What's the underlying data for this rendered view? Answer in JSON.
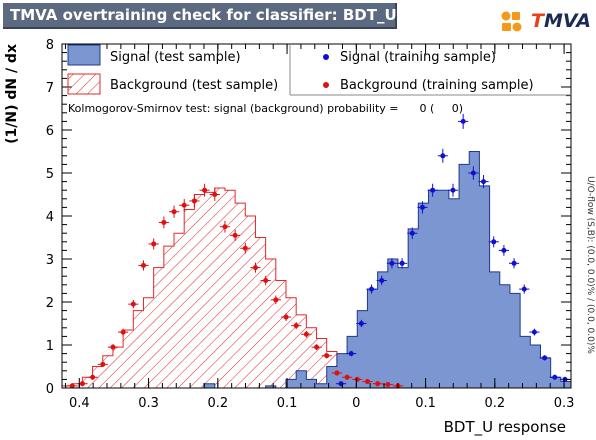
{
  "header": {
    "title": "TMVA overtraining check for classifier: BDT_U",
    "logo_text": "TMVA",
    "logo_text_plain": "MVA",
    "logo_text_accent": "T"
  },
  "legend": {
    "signal_test": "Signal (test sample)",
    "signal_train": "Signal (training sample)",
    "background_test": "Background (test sample)",
    "background_train": "Background (training sample)"
  },
  "ks_text": "Kolmogorov-Smirnov test: signal (background) probability =      0 (     0)",
  "side_text": "U/O-flow (S,B): (0.0, 0.0)% / (0.0, 0.0)%",
  "colors": {
    "signal_fill": "#7b96d0",
    "signal_line": "#1f3a8f",
    "background_line": "#e0282a",
    "signal_marker": "#1010d0",
    "background_marker": "#e01010"
  },
  "chart_data": {
    "type": "area",
    "title": "TMVA overtraining check for classifier: BDT_U",
    "xlabel": "BDT_U response",
    "ylabel": "(1/N) dN / dx",
    "xlim": [
      -0.425,
      0.31
    ],
    "ylim": [
      0,
      8
    ],
    "xticks": [
      -0.4,
      -0.3,
      -0.2,
      -0.1,
      0,
      0.1,
      0.2,
      0.3
    ],
    "xtick_labels": [
      "0.4",
      "0.3",
      "0.2",
      "0.1",
      "0",
      "0.1",
      "0.2",
      "0.3"
    ],
    "yticks": [
      0,
      1,
      2,
      3,
      4,
      5,
      6,
      7,
      8
    ],
    "ytick_labels": [
      "0",
      "1",
      "2",
      "3",
      "4",
      "5",
      "6",
      "7",
      "8"
    ],
    "bin_width": 0.0147,
    "series": [
      {
        "name": "Signal (test sample)",
        "style": "filled-histogram",
        "x": [
          -0.4176,
          -0.4029,
          -0.3882,
          -0.3735,
          -0.3588,
          -0.3441,
          -0.3294,
          -0.3147,
          -0.3,
          -0.2853,
          -0.2706,
          -0.2559,
          -0.2412,
          -0.2265,
          -0.2118,
          -0.1971,
          -0.1824,
          -0.1677,
          -0.153,
          -0.1383,
          -0.1236,
          -0.1089,
          -0.0942,
          -0.0795,
          -0.0648,
          -0.0501,
          -0.0354,
          -0.0207,
          -0.006,
          0.0087,
          0.0234,
          0.0381,
          0.0528,
          0.0675,
          0.0822,
          0.0969,
          0.1116,
          0.1263,
          0.141,
          0.1557,
          0.1704,
          0.1851,
          0.1998,
          0.2145,
          0.2292,
          0.2439,
          0.2586,
          0.2733,
          0.288,
          0.3027
        ],
        "values": [
          0,
          0,
          0,
          0,
          0,
          0,
          0,
          0,
          0,
          0,
          0,
          0,
          0,
          0,
          0.1,
          0,
          0,
          0,
          0,
          0,
          0.05,
          0,
          0.2,
          0.4,
          0.2,
          0.1,
          0.5,
          0.8,
          1.2,
          1.8,
          2.3,
          2.7,
          3.0,
          2.8,
          3.7,
          4.3,
          4.6,
          4.6,
          4.4,
          5.2,
          5.5,
          4.7,
          2.7,
          2.4,
          2.2,
          1.2,
          1.0,
          0.7,
          0.25,
          0.15
        ]
      },
      {
        "name": "Background (test sample)",
        "style": "hatched-histogram",
        "x": [
          -0.4176,
          -0.4029,
          -0.3882,
          -0.3735,
          -0.3588,
          -0.3441,
          -0.3294,
          -0.3147,
          -0.3,
          -0.2853,
          -0.2706,
          -0.2559,
          -0.2412,
          -0.2265,
          -0.2118,
          -0.1971,
          -0.1824,
          -0.1677,
          -0.153,
          -0.1383,
          -0.1236,
          -0.1089,
          -0.0942,
          -0.0795,
          -0.0648,
          -0.0501,
          -0.0354,
          -0.0207,
          -0.006,
          0.0087,
          0.0234,
          0.0381,
          0.0528,
          0.0675,
          0.0822,
          0.0969,
          0.1116,
          0.1263,
          0.141,
          0.1557,
          0.1704,
          0.1851,
          0.1998,
          0.2145,
          0.2292,
          0.2439,
          0.2586,
          0.2733,
          0.288,
          0.3027
        ],
        "values": [
          0.05,
          0.1,
          0.25,
          0.5,
          0.75,
          0.95,
          1.35,
          1.8,
          2.1,
          2.8,
          3.3,
          3.6,
          4.15,
          4.5,
          4.55,
          4.65,
          4.6,
          4.3,
          4.0,
          3.5,
          3.0,
          2.5,
          2.1,
          1.7,
          1.4,
          1.15,
          0.85,
          0.6,
          0.45,
          0.3,
          0.2,
          0.15,
          0.1,
          0.05,
          0.03,
          0.02,
          0,
          0,
          0,
          0,
          0,
          0,
          0,
          0,
          0,
          0,
          0,
          0,
          0,
          0
        ]
      },
      {
        "name": "Signal (training sample)",
        "style": "points",
        "x": [
          -0.0221,
          -0.0074,
          0.0073,
          0.022,
          0.0367,
          0.0514,
          0.0661,
          0.0808,
          0.0955,
          0.1102,
          0.1249,
          0.1396,
          0.1543,
          0.169,
          0.1837,
          0.1984,
          0.2131,
          0.2278,
          0.2425,
          0.2572,
          0.2719,
          0.2866,
          0.3013
        ],
        "values": [
          0.1,
          0.8,
          1.5,
          2.3,
          2.5,
          2.9,
          2.9,
          3.6,
          4.2,
          4.6,
          5.4,
          4.6,
          6.2,
          5.0,
          4.8,
          3.4,
          3.2,
          2.9,
          2.3,
          1.3,
          0.7,
          0.25,
          0.2
        ]
      },
      {
        "name": "Background (training sample)",
        "style": "points",
        "x": [
          -0.4102,
          -0.3955,
          -0.3808,
          -0.3661,
          -0.3514,
          -0.3367,
          -0.322,
          -0.3073,
          -0.2926,
          -0.2779,
          -0.2632,
          -0.2485,
          -0.2338,
          -0.2191,
          -0.2044,
          -0.1897,
          -0.175,
          -0.1603,
          -0.1456,
          -0.1309,
          -0.1162,
          -0.1015,
          -0.0868,
          -0.0721,
          -0.0574,
          -0.0427,
          -0.028,
          -0.0133,
          0.0014,
          0.0161,
          0.0308,
          0.0455,
          0.0602
        ],
        "values": [
          0.05,
          0.1,
          0.25,
          0.55,
          0.95,
          1.3,
          1.95,
          2.85,
          3.35,
          3.85,
          4.1,
          4.25,
          4.35,
          4.6,
          4.5,
          3.75,
          3.55,
          3.25,
          2.8,
          2.5,
          2.05,
          1.65,
          1.45,
          1.25,
          0.95,
          0.75,
          0.35,
          0.25,
          0.2,
          0.15,
          0.1,
          0.08,
          0.05
        ]
      }
    ]
  }
}
